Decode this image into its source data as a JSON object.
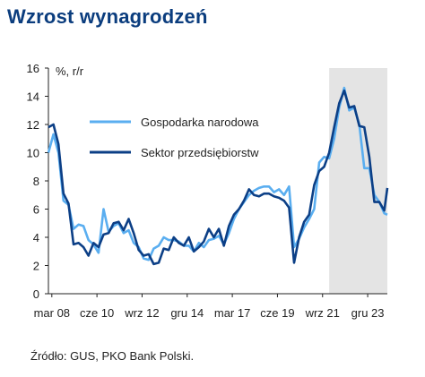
{
  "page": {
    "title": "Wzrost wynagrodzeń",
    "source": "Źródło: GUS, PKO Bank Polski."
  },
  "colors": {
    "gospodarka": "#5aaef0",
    "sektor": "#0c3f86",
    "shade": "#e4e4e4",
    "title": "#0b3d7e"
  },
  "chart_data": {
    "type": "line",
    "ylabel": "%, r/r",
    "ylim": [
      0,
      16
    ],
    "yticks": [
      0,
      2,
      4,
      6,
      8,
      10,
      12,
      14,
      16
    ],
    "xlim": [
      2008.0,
      2024.9
    ],
    "xticks": [
      {
        "label": "mar 08",
        "x": 2008.17
      },
      {
        "label": "cze 10",
        "x": 2010.42
      },
      {
        "label": "wrz 12",
        "x": 2012.67
      },
      {
        "label": "gru 14",
        "x": 2014.92
      },
      {
        "label": "mar 17",
        "x": 2017.17
      },
      {
        "label": "cze 19",
        "x": 2019.42
      },
      {
        "label": "wrz 21",
        "x": 2021.67
      },
      {
        "label": "gru 23",
        "x": 2023.92
      }
    ],
    "shaded_region": {
      "x_start": 2022.0,
      "x_end": 2024.9
    },
    "legend_position": "upper-left",
    "grid": false,
    "series": [
      {
        "name": "Gospodarka narodowa",
        "color_key": "gospodarka",
        "points": [
          [
            2008.0,
            10.0
          ],
          [
            2008.25,
            11.3
          ],
          [
            2008.5,
            10.0
          ],
          [
            2008.75,
            6.6
          ],
          [
            2009.0,
            6.3
          ],
          [
            2009.25,
            4.6
          ],
          [
            2009.5,
            4.9
          ],
          [
            2009.75,
            4.8
          ],
          [
            2010.0,
            3.8
          ],
          [
            2010.25,
            3.5
          ],
          [
            2010.5,
            2.9
          ],
          [
            2010.75,
            6.0
          ],
          [
            2011.0,
            4.4
          ],
          [
            2011.25,
            4.8
          ],
          [
            2011.5,
            5.0
          ],
          [
            2011.75,
            4.3
          ],
          [
            2012.0,
            4.5
          ],
          [
            2012.25,
            3.6
          ],
          [
            2012.5,
            3.3
          ],
          [
            2012.75,
            2.5
          ],
          [
            2013.0,
            2.4
          ],
          [
            2013.25,
            3.2
          ],
          [
            2013.5,
            3.4
          ],
          [
            2013.75,
            4.0
          ],
          [
            2014.0,
            3.8
          ],
          [
            2014.25,
            3.8
          ],
          [
            2014.5,
            3.7
          ],
          [
            2014.75,
            3.4
          ],
          [
            2015.0,
            3.4
          ],
          [
            2015.25,
            3.0
          ],
          [
            2015.5,
            3.6
          ],
          [
            2015.75,
            3.3
          ],
          [
            2016.0,
            3.8
          ],
          [
            2016.25,
            3.9
          ],
          [
            2016.5,
            4.1
          ],
          [
            2016.75,
            3.5
          ],
          [
            2017.0,
            4.3
          ],
          [
            2017.25,
            5.3
          ],
          [
            2017.5,
            6.0
          ],
          [
            2017.75,
            6.5
          ],
          [
            2018.0,
            7.0
          ],
          [
            2018.25,
            7.3
          ],
          [
            2018.5,
            7.5
          ],
          [
            2018.75,
            7.6
          ],
          [
            2019.0,
            7.6
          ],
          [
            2019.25,
            7.2
          ],
          [
            2019.5,
            7.4
          ],
          [
            2019.75,
            7.0
          ],
          [
            2020.0,
            7.6
          ],
          [
            2020.25,
            3.3
          ],
          [
            2020.5,
            3.9
          ],
          [
            2020.75,
            4.7
          ],
          [
            2021.0,
            5.3
          ],
          [
            2021.25,
            6.0
          ],
          [
            2021.5,
            9.3
          ],
          [
            2021.75,
            9.7
          ],
          [
            2022.0,
            9.6
          ],
          [
            2022.25,
            11.0
          ],
          [
            2022.5,
            13.2
          ],
          [
            2022.75,
            14.6
          ],
          [
            2023.0,
            13.0
          ],
          [
            2023.25,
            13.2
          ],
          [
            2023.5,
            12.0
          ],
          [
            2023.75,
            8.9
          ],
          [
            2024.0,
            8.9
          ],
          [
            2024.25,
            7.0
          ],
          [
            2024.5,
            6.5
          ],
          [
            2024.75,
            5.7
          ],
          [
            2024.9,
            5.6
          ]
        ]
      },
      {
        "name": "Sektor przedsiębiorstw",
        "color_key": "sektor",
        "points": [
          [
            2008.0,
            11.8
          ],
          [
            2008.25,
            12.0
          ],
          [
            2008.5,
            10.6
          ],
          [
            2008.75,
            7.1
          ],
          [
            2009.0,
            6.4
          ],
          [
            2009.25,
            3.5
          ],
          [
            2009.5,
            3.6
          ],
          [
            2009.75,
            3.3
          ],
          [
            2010.0,
            2.7
          ],
          [
            2010.25,
            3.6
          ],
          [
            2010.5,
            3.3
          ],
          [
            2010.75,
            4.2
          ],
          [
            2011.0,
            4.3
          ],
          [
            2011.25,
            5.0
          ],
          [
            2011.5,
            5.1
          ],
          [
            2011.75,
            4.5
          ],
          [
            2012.0,
            5.3
          ],
          [
            2012.25,
            4.3
          ],
          [
            2012.5,
            3.1
          ],
          [
            2012.75,
            2.7
          ],
          [
            2013.0,
            2.8
          ],
          [
            2013.25,
            2.1
          ],
          [
            2013.5,
            2.2
          ],
          [
            2013.75,
            3.2
          ],
          [
            2014.0,
            3.1
          ],
          [
            2014.25,
            4.0
          ],
          [
            2014.5,
            3.6
          ],
          [
            2014.75,
            3.4
          ],
          [
            2015.0,
            4.0
          ],
          [
            2015.25,
            3.0
          ],
          [
            2015.5,
            3.3
          ],
          [
            2015.75,
            3.7
          ],
          [
            2016.0,
            4.6
          ],
          [
            2016.25,
            4.0
          ],
          [
            2016.5,
            4.6
          ],
          [
            2016.75,
            3.4
          ],
          [
            2017.0,
            4.8
          ],
          [
            2017.25,
            5.6
          ],
          [
            2017.5,
            6.0
          ],
          [
            2017.75,
            6.6
          ],
          [
            2018.0,
            7.4
          ],
          [
            2018.25,
            7.0
          ],
          [
            2018.5,
            6.9
          ],
          [
            2018.75,
            7.1
          ],
          [
            2019.0,
            7.1
          ],
          [
            2019.25,
            6.9
          ],
          [
            2019.5,
            6.8
          ],
          [
            2019.75,
            6.6
          ],
          [
            2020.0,
            6.1
          ],
          [
            2020.25,
            2.2
          ],
          [
            2020.5,
            4.0
          ],
          [
            2020.75,
            5.1
          ],
          [
            2021.0,
            5.6
          ],
          [
            2021.25,
            7.7
          ],
          [
            2021.5,
            8.7
          ],
          [
            2021.75,
            9.0
          ],
          [
            2022.0,
            10.0
          ],
          [
            2022.25,
            11.8
          ],
          [
            2022.5,
            13.5
          ],
          [
            2022.75,
            14.4
          ],
          [
            2023.0,
            13.2
          ],
          [
            2023.25,
            13.3
          ],
          [
            2023.5,
            11.9
          ],
          [
            2023.75,
            11.8
          ],
          [
            2024.0,
            9.7
          ],
          [
            2024.25,
            6.5
          ],
          [
            2024.5,
            6.5
          ],
          [
            2024.75,
            5.9
          ],
          [
            2024.9,
            7.5
          ]
        ]
      }
    ]
  }
}
